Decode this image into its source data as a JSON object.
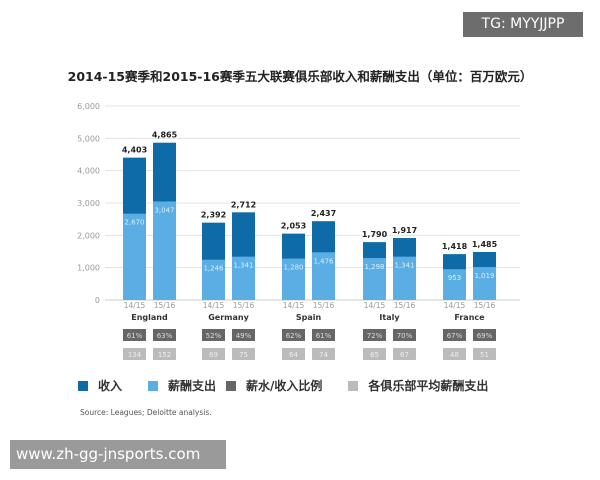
{
  "overlay": {
    "tg_label": "TG: MYYJJPP",
    "watermark": "www.zh-gg-jnsports.com"
  },
  "chart_data": {
    "type": "bar",
    "title": "2014-15赛季和2015-16赛季五大联赛俱乐部收入和薪酬支出（单位：百万欧元）",
    "ylim": [
      0,
      6000
    ],
    "yticks": [
      "0",
      "1,000",
      "2,000",
      "3,000",
      "4,000",
      "5,000",
      "6,000"
    ],
    "grid": true,
    "countries": [
      "England",
      "Germany",
      "Spain",
      "Italy",
      "France"
    ],
    "seasons": [
      "14/15",
      "15/16"
    ],
    "series": [
      {
        "name": "收入",
        "color": "#0e6ba8",
        "values": [
          [
            4403,
            4865
          ],
          [
            2392,
            2712
          ],
          [
            2053,
            2437
          ],
          [
            1790,
            1917
          ],
          [
            1418,
            1485
          ]
        ],
        "labels": [
          [
            "4,403",
            "4,865"
          ],
          [
            "2,392",
            "2,712"
          ],
          [
            "2,053",
            "2,437"
          ],
          [
            "1,790",
            "1,917"
          ],
          [
            "1,418",
            "1,485"
          ]
        ]
      },
      {
        "name": "薪酬支出",
        "color": "#5aaee3",
        "values": [
          [
            2670,
            3047
          ],
          [
            1246,
            1341
          ],
          [
            1280,
            1476
          ],
          [
            1298,
            1341
          ],
          [
            953,
            1019
          ]
        ],
        "labels": [
          [
            "2,670",
            "3,047"
          ],
          [
            "1,246",
            "1,341"
          ],
          [
            "1,280",
            "1,476"
          ],
          [
            "1,298",
            "1,341"
          ],
          [
            "953",
            "1,019"
          ]
        ]
      },
      {
        "name": "薪水/收入比例",
        "color": "#666666",
        "values": [
          [
            "61%",
            "63%"
          ],
          [
            "52%",
            "49%"
          ],
          [
            "62%",
            "61%"
          ],
          [
            "72%",
            "70%"
          ],
          [
            "67%",
            "69%"
          ]
        ]
      },
      {
        "name": "各俱乐部平均薪酬支出",
        "color": "#bbbbbb",
        "values": [
          [
            "134",
            "152"
          ],
          [
            "69",
            "75"
          ],
          [
            "64",
            "74"
          ],
          [
            "65",
            "67"
          ],
          [
            "48",
            "51"
          ]
        ]
      }
    ],
    "legend_position": "bottom",
    "source": "Source: Leagues; Deloitte analysis."
  }
}
